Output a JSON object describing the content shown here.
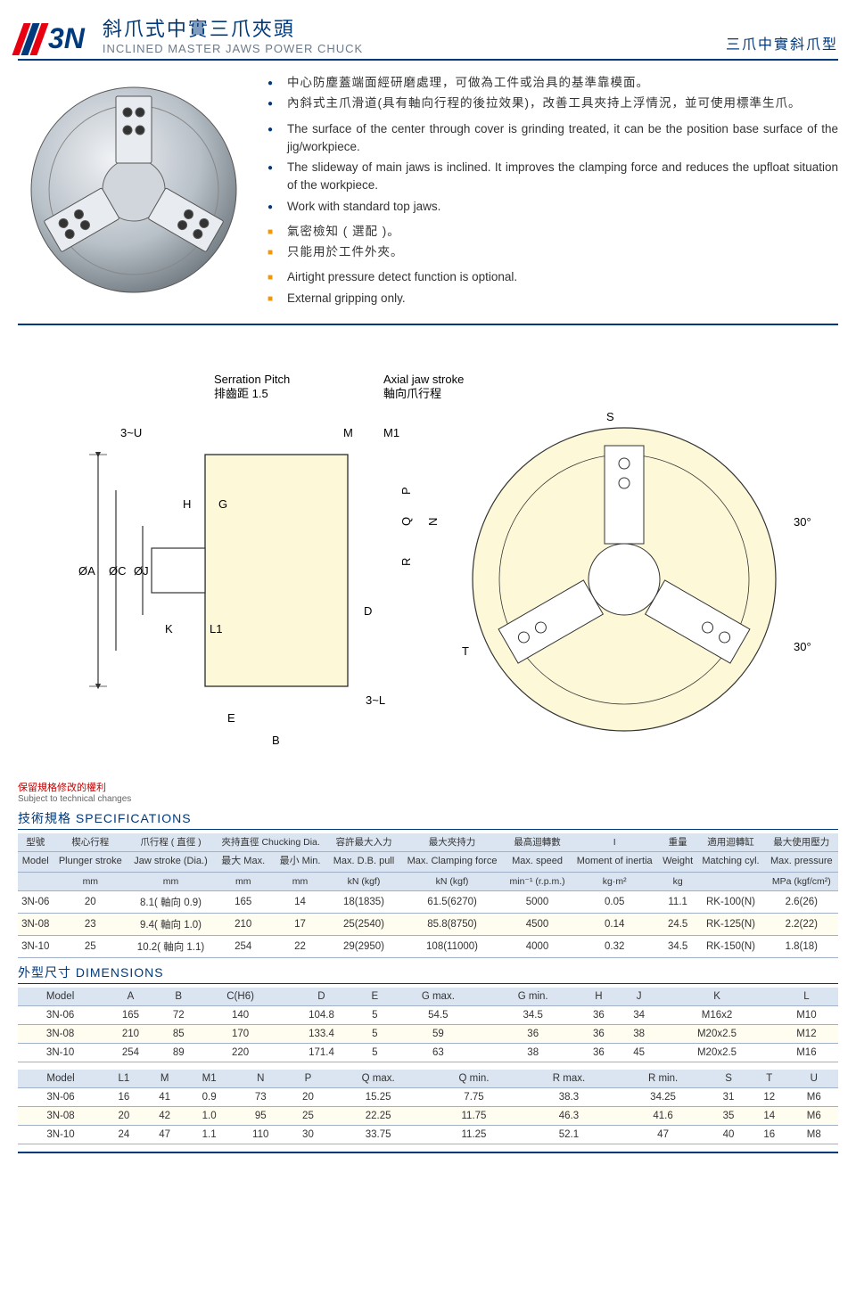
{
  "header": {
    "logo": "3N",
    "title_zh": "斜爪式中實三爪夾頭",
    "title_en": "INCLINED MASTER JAWS POWER CHUCK",
    "subtitle_right": "三爪中實斜爪型"
  },
  "features_blue_zh": [
    "中心防塵蓋端面經研磨處理，可做為工件或治具的基準靠模面。",
    "內斜式主爪滑道(具有軸向行程的後拉效果)，改善工具夾持上浮情況，並可使用標準生爪。"
  ],
  "features_blue_en": [
    "The surface of the center through cover is grinding treated, it can be the position base surface of the jig/workpiece.",
    "The slideway of main jaws is inclined. It improves the clamping force and reduces the upfloat situation of the workpiece.",
    "Work with standard top jaws."
  ],
  "features_orange_zh": [
    "氣密檢知 ( 選配 )。",
    "只能用於工件外夾。"
  ],
  "features_orange_en": [
    "Airtight pressure detect function is optional.",
    "External gripping only."
  ],
  "diagram_labels": {
    "serration_pitch_en": "Serration Pitch",
    "serration_pitch_zh": "排齒距",
    "serration_pitch_val": "1.5",
    "axial_en": "Axial jaw stroke",
    "axial_zh": "軸向爪行程",
    "dim_labels": [
      "3~U",
      "M",
      "M1",
      "S",
      "H",
      "G",
      "ØA",
      "ØC",
      "ØJ",
      "K",
      "L1",
      "E",
      "B",
      "D",
      "3~L",
      "R",
      "Q",
      "P",
      "N",
      "T",
      "30°",
      "30°"
    ]
  },
  "notes": {
    "red_zh": "保留規格修改的權利",
    "red_en": "Subject to technical changes"
  },
  "spec_title": "技術規格 SPECIFICATIONS",
  "dim_title": "外型尺寸 DIMENSIONS",
  "spec_headers_zh": [
    "型號",
    "楔心行程",
    "爪行程 ( 直徑 )",
    "夾持直徑\nChucking Dia.",
    "容許最大入力",
    "最大夾持力",
    "最高迴轉數",
    "I",
    "重量",
    "適用迴轉缸",
    "最大使用壓力"
  ],
  "spec_headers_en": [
    "Model",
    "Plunger stroke",
    "Jaw stroke (Dia.)",
    "最大\nMax.",
    "最小\nMin.",
    "Max. D.B. pull",
    "Max. Clamping force",
    "Max. speed",
    "Moment of inertia",
    "Weight",
    "Matching cyl.",
    "Max. pressure"
  ],
  "spec_units": [
    "",
    "mm",
    "mm",
    "mm",
    "mm",
    "kN (kgf)",
    "kN (kgf)",
    "min⁻¹ (r.p.m.)",
    "kg·m²",
    "kg",
    "",
    "MPa (kgf/cm²)"
  ],
  "spec_rows": [
    [
      "3N-06",
      "20",
      "8.1( 軸向 0.9)",
      "165",
      "14",
      "18(1835)",
      "61.5(6270)",
      "5000",
      "0.05",
      "11.1",
      "RK-100(N)",
      "2.6(26)"
    ],
    [
      "3N-08",
      "23",
      "9.4( 軸向 1.0)",
      "210",
      "17",
      "25(2540)",
      "85.8(8750)",
      "4500",
      "0.14",
      "24.5",
      "RK-125(N)",
      "2.2(22)"
    ],
    [
      "3N-10",
      "25",
      "10.2( 軸向 1.1)",
      "254",
      "22",
      "29(2950)",
      "108(11000)",
      "4000",
      "0.32",
      "34.5",
      "RK-150(N)",
      "1.8(18)"
    ]
  ],
  "dim1_headers": [
    "Model",
    "A",
    "B",
    "C(H6)",
    "D",
    "E",
    "G max.",
    "G min.",
    "H",
    "J",
    "K",
    "L"
  ],
  "dim1_rows": [
    [
      "3N-06",
      "165",
      "72",
      "140",
      "104.8",
      "5",
      "54.5",
      "34.5",
      "36",
      "34",
      "M16x2",
      "M10"
    ],
    [
      "3N-08",
      "210",
      "85",
      "170",
      "133.4",
      "5",
      "59",
      "36",
      "36",
      "38",
      "M20x2.5",
      "M12"
    ],
    [
      "3N-10",
      "254",
      "89",
      "220",
      "171.4",
      "5",
      "63",
      "38",
      "36",
      "45",
      "M20x2.5",
      "M16"
    ]
  ],
  "dim2_headers": [
    "Model",
    "L1",
    "M",
    "M1",
    "N",
    "P",
    "Q max.",
    "Q min.",
    "R max.",
    "R min.",
    "S",
    "T",
    "U"
  ],
  "dim2_rows": [
    [
      "3N-06",
      "16",
      "41",
      "0.9",
      "73",
      "20",
      "15.25",
      "7.75",
      "38.3",
      "34.25",
      "31",
      "12",
      "M6"
    ],
    [
      "3N-08",
      "20",
      "42",
      "1.0",
      "95",
      "25",
      "22.25",
      "11.75",
      "46.3",
      "41.6",
      "35",
      "14",
      "M6"
    ],
    [
      "3N-10",
      "24",
      "47",
      "1.1",
      "110",
      "30",
      "33.75",
      "11.25",
      "52.1",
      "47",
      "40",
      "16",
      "M8"
    ]
  ],
  "colors": {
    "brand_blue": "#003a7c",
    "brand_red": "#e60012",
    "orange": "#f39800",
    "table_header_bg": "#dbe5f1",
    "table_alt_bg": "#fffdf0"
  }
}
